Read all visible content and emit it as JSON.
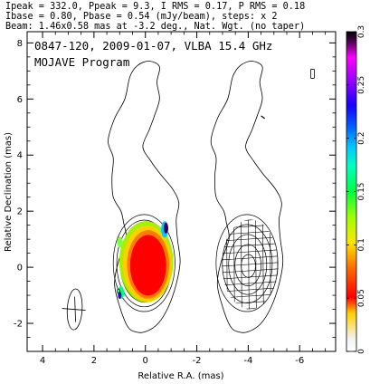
{
  "header": {
    "line1": "Ipeak = 332.0, Ppeak = 9.3, I RMS = 0.17, P RMS = 0.18",
    "line2": "Ibase = 0.80, Pbase = 0.54 (mJy/beam), steps: x 2",
    "line3": "Beam: 1.46x0.58 mas at -3.2 deg., Nat. Wgt. (no taper)"
  },
  "chart_data": {
    "type": "contour",
    "title": "0847-120, 2009-01-07, VLBA 15.4 GHz",
    "subtitle": "MOJAVE Program",
    "xlabel": "Relative R.A. (mas)",
    "ylabel": "Relative Declination (mas)",
    "xlim": [
      4.6,
      -7.4
    ],
    "ylim": [
      -3.0,
      8.4
    ],
    "xticks": [
      4,
      2,
      0,
      -2,
      -4,
      -6
    ],
    "yticks": [
      -2,
      0,
      2,
      4,
      6,
      8
    ],
    "colorbar": {
      "min": 0,
      "max": 0.3,
      "ticks": [
        0,
        0.05,
        0.1,
        0.15,
        0.2,
        0.25,
        0.3
      ]
    },
    "panels": [
      {
        "name": "",
        "x_offset": 0,
        "contour_levels": 9
      },
      {
        "name": "",
        "x_offset": -4,
        "contour_levels": 5
      }
    ],
    "outer_contour": [
      [
        0.7,
        -2.1
      ],
      [
        1.0,
        -1.4
      ],
      [
        1.2,
        -0.6
      ],
      [
        1.05,
        0.2
      ],
      [
        0.75,
        1.0
      ],
      [
        0.85,
        1.6
      ],
      [
        0.95,
        2.0
      ],
      [
        1.25,
        2.5
      ],
      [
        1.3,
        3.2
      ],
      [
        1.25,
        3.9
      ],
      [
        1.45,
        4.5
      ],
      [
        1.2,
        5.3
      ],
      [
        0.8,
        6.0
      ],
      [
        0.6,
        6.8
      ],
      [
        0.3,
        7.2
      ],
      [
        -0.15,
        7.35
      ],
      [
        -0.55,
        7.15
      ],
      [
        -0.45,
        6.6
      ],
      [
        -0.55,
        6.0
      ],
      [
        -0.35,
        5.4
      ],
      [
        -0.15,
        4.9
      ],
      [
        0.1,
        4.3
      ],
      [
        -0.2,
        3.8
      ],
      [
        -0.6,
        3.3
      ],
      [
        -1.05,
        2.8
      ],
      [
        -1.3,
        2.3
      ],
      [
        -1.2,
        1.7
      ],
      [
        -1.25,
        1.0
      ],
      [
        -1.35,
        0.2
      ],
      [
        -1.2,
        -0.6
      ],
      [
        -0.9,
        -1.4
      ],
      [
        -0.5,
        -2.0
      ],
      [
        0.0,
        -2.3
      ],
      [
        0.4,
        -2.3
      ]
    ],
    "beam": {
      "major": 1.46,
      "minor": 0.58,
      "pa": -3.2
    }
  }
}
